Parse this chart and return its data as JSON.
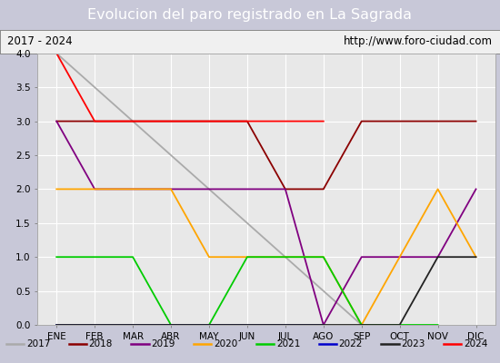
{
  "title": "Evolucion del paro registrado en La Sagrada",
  "subtitle_left": "2017 - 2024",
  "subtitle_right": "http://www.foro-ciudad.com",
  "ylim": [
    0.0,
    4.0
  ],
  "months": [
    "ENE",
    "FEB",
    "MAR",
    "ABR",
    "MAY",
    "JUN",
    "JUL",
    "AGO",
    "SEP",
    "OCT",
    "NOV",
    "DIC"
  ],
  "series": {
    "2017": {
      "color": "#aaaaaa",
      "data": [
        [
          1,
          4.0
        ],
        [
          2,
          3.5
        ],
        [
          3,
          3.0
        ],
        [
          4,
          2.5
        ],
        [
          5,
          2.0
        ],
        [
          6,
          1.5
        ],
        [
          7,
          1.0
        ],
        [
          8,
          0.5
        ],
        [
          9,
          0.0
        ]
      ]
    },
    "2018": {
      "color": "#8b0000",
      "data": [
        [
          1,
          3.0
        ],
        [
          2,
          3.0
        ],
        [
          3,
          3.0
        ],
        [
          4,
          3.0
        ],
        [
          5,
          3.0
        ],
        [
          6,
          3.0
        ],
        [
          7,
          2.0
        ],
        [
          8,
          2.0
        ],
        [
          9,
          3.0
        ],
        [
          10,
          3.0
        ],
        [
          11,
          3.0
        ],
        [
          12,
          3.0
        ]
      ]
    },
    "2019": {
      "color": "#800080",
      "data": [
        [
          1,
          3.0
        ],
        [
          2,
          2.0
        ],
        [
          3,
          2.0
        ],
        [
          4,
          2.0
        ],
        [
          5,
          2.0
        ],
        [
          6,
          2.0
        ],
        [
          7,
          2.0
        ],
        [
          8,
          0.0
        ],
        [
          9,
          1.0
        ],
        [
          10,
          1.0
        ],
        [
          11,
          1.0
        ],
        [
          12,
          2.0
        ]
      ]
    },
    "2020": {
      "color": "#ffa500",
      "data": [
        [
          1,
          2.0
        ],
        [
          2,
          2.0
        ],
        [
          3,
          2.0
        ],
        [
          4,
          2.0
        ],
        [
          5,
          1.0
        ],
        [
          6,
          1.0
        ],
        [
          7,
          1.0
        ],
        [
          8,
          1.0
        ],
        [
          9,
          0.0
        ],
        [
          10,
          1.0
        ],
        [
          11,
          2.0
        ],
        [
          12,
          1.0
        ]
      ]
    },
    "2021": {
      "color": "#00cc00",
      "data": [
        [
          1,
          1.0
        ],
        [
          2,
          1.0
        ],
        [
          3,
          1.0
        ],
        [
          4,
          0.0
        ],
        [
          5,
          0.0
        ],
        [
          6,
          1.0
        ],
        [
          7,
          1.0
        ],
        [
          8,
          1.0
        ],
        [
          9,
          0.0
        ],
        [
          10,
          0.0
        ],
        [
          11,
          0.0
        ]
      ]
    },
    "2022": {
      "color": "#0000cc",
      "data": [
        [
          1,
          0.0
        ],
        [
          2,
          0.0
        ],
        [
          3,
          0.0
        ],
        [
          4,
          0.0
        ],
        [
          5,
          0.0
        ],
        [
          6,
          0.0
        ],
        [
          7,
          0.0
        ],
        [
          8,
          0.0
        ]
      ]
    },
    "2023": {
      "color": "#222222",
      "data": [
        [
          1,
          0.0
        ],
        [
          2,
          0.0
        ],
        [
          3,
          0.0
        ],
        [
          4,
          0.0
        ],
        [
          5,
          0.0
        ],
        [
          6,
          0.0
        ],
        [
          7,
          0.0
        ],
        [
          8,
          0.0
        ],
        [
          9,
          0.0
        ],
        [
          10,
          0.0
        ],
        [
          11,
          1.0
        ],
        [
          12,
          1.0
        ]
      ]
    },
    "2024": {
      "color": "#ff0000",
      "data": [
        [
          1,
          4.0
        ],
        [
          2,
          3.0
        ],
        [
          3,
          3.0
        ],
        [
          4,
          3.0
        ],
        [
          5,
          3.0
        ],
        [
          6,
          3.0
        ],
        [
          7,
          3.0
        ],
        [
          8,
          3.0
        ]
      ]
    }
  },
  "title_bg_color": "#4477cc",
  "title_font_color": "white",
  "plot_bg_color": "#e8e8e8",
  "grid_color": "white",
  "subtitle_bg_color": "#f0f0f0",
  "legend_order": [
    "2017",
    "2018",
    "2019",
    "2020",
    "2021",
    "2022",
    "2023",
    "2024"
  ]
}
